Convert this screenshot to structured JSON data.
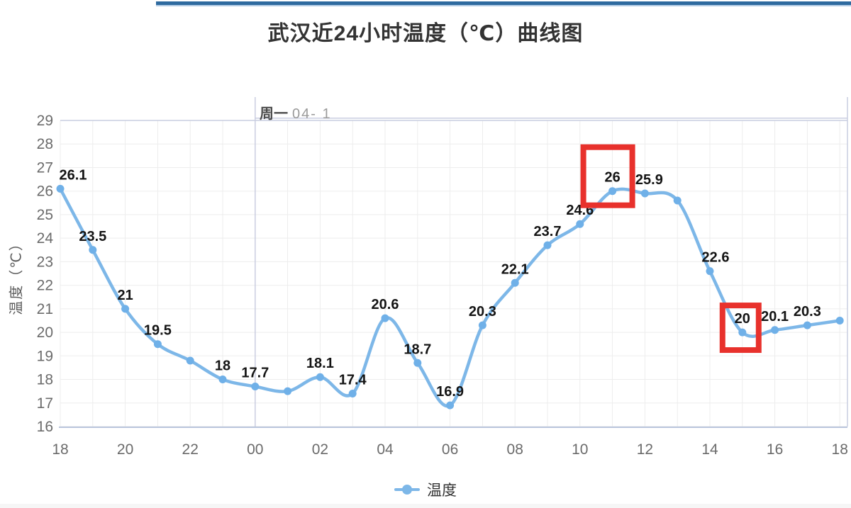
{
  "page": {
    "title": "武汉近24小时温度（℃）曲线图"
  },
  "chart_data": {
    "type": "line",
    "title": "武汉近24小时温度（℃）曲线图",
    "ylabel": "温度（℃）",
    "xlabel": "",
    "series_name": "温度",
    "hours": [
      "18",
      "19",
      "20",
      "21",
      "22",
      "23",
      "00",
      "01",
      "02",
      "03",
      "04",
      "05",
      "06",
      "07",
      "08",
      "09",
      "10",
      "11",
      "12",
      "13",
      "14",
      "15",
      "16",
      "17",
      "18"
    ],
    "values": [
      26.1,
      23.5,
      21,
      19.5,
      18.8,
      18,
      17.7,
      17.5,
      18.1,
      17.4,
      20.6,
      18.7,
      16.9,
      20.3,
      22.1,
      23.7,
      24.6,
      26,
      25.9,
      25.6,
      22.6,
      20,
      20.1,
      20.3,
      20.5
    ],
    "point_labels": [
      "26.1",
      "23.5",
      "21",
      "19.5",
      null,
      "18",
      "17.7",
      null,
      "18.1",
      "17.4",
      "20.6",
      "18.7",
      "16.9",
      "20.3",
      "22.1",
      "23.7",
      "24.6",
      "26",
      "25.9",
      null,
      "22.6",
      "20",
      "20.1",
      "20.3",
      null
    ],
    "xtick_labels": [
      "18",
      "20",
      "22",
      "00",
      "02",
      "04",
      "06",
      "08",
      "10",
      "12",
      "14",
      "16",
      "18"
    ],
    "yticks": [
      16,
      17,
      18,
      19,
      20,
      21,
      22,
      23,
      24,
      25,
      26,
      27,
      28,
      29
    ],
    "ylim": [
      16,
      29
    ],
    "grid": true,
    "legend_position": "bottom-center",
    "day_marker": {
      "label_bold": "周一",
      "label_date": "04- 1",
      "at_hour": "00"
    },
    "highlight_boxes": [
      {
        "value_label": "26",
        "hour_index": 17
      },
      {
        "value_label": "20",
        "hour_index": 21
      }
    ],
    "colors": {
      "line": "#7db7e8",
      "point": "#6fb0e8",
      "data_label": "#141414",
      "axis_text": "#6b6b6b",
      "grid_line": "#ededed",
      "boundary_line": "#c9cde0",
      "bottom_axis_line": "#b9c5dc",
      "highlight_box": "#e8312c",
      "topbar": "#2e6a9f"
    }
  },
  "legend": {
    "label": "温度"
  }
}
